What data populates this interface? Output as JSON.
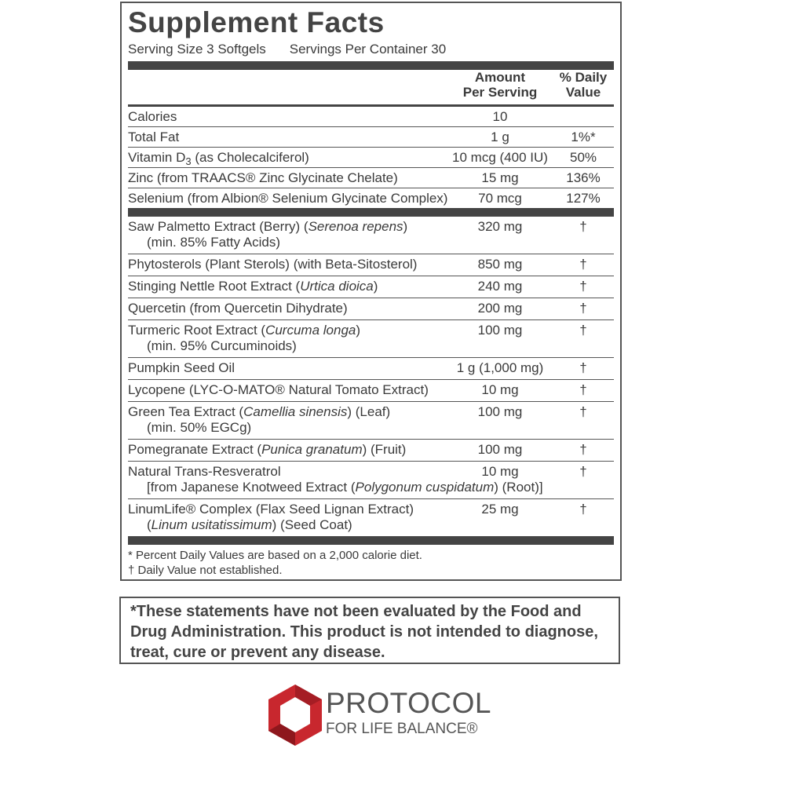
{
  "header": {
    "title": "Supplement Facts",
    "serving_size": "Serving Size 3 Softgels",
    "servings_per_container": "Servings Per Container 30"
  },
  "columns": {
    "amount": [
      "Amount",
      "Per Serving"
    ],
    "daily_value": [
      "% Daily",
      "Value"
    ]
  },
  "nutrients": [
    {
      "name": [
        "Calories"
      ],
      "amount": "10"
    },
    {
      "name": [
        "Total Fat"
      ],
      "amount": "1 g",
      "daily_value": "1%*"
    },
    {
      "name": [
        [
          "Vitamin D",
          {
            "sub": "3"
          },
          " (as Cholecalciferol)"
        ]
      ],
      "amount": "10 mcg (400 IU)",
      "daily_value": "50%"
    },
    {
      "name": [
        "Zinc (from TRAACS® Zinc Glycinate Chelate)"
      ],
      "amount": "15 mg",
      "daily_value": "136%"
    },
    {
      "name": [
        "Selenium (from Albion® Selenium Glycinate Complex)"
      ],
      "amount": "70 mcg",
      "daily_value": "127%"
    }
  ],
  "ingredients": [
    {
      "name": [
        [
          "Saw Palmetto Extract (Berry) (",
          {
            "italic": "Serenoa repens"
          },
          ")"
        ],
        "(min. 85% Fatty Acids)"
      ],
      "amount": "320 mg",
      "daily_value": "†"
    },
    {
      "name": [
        "Phytosterols (Plant Sterols) (with Beta-Sitosterol)"
      ],
      "amount": "850 mg",
      "daily_value": "†"
    },
    {
      "name": [
        [
          "Stinging Nettle Root Extract (",
          {
            "italic": "Urtica dioica"
          },
          ")"
        ]
      ],
      "amount": "240 mg",
      "daily_value": "†"
    },
    {
      "name": [
        "Quercetin (from Quercetin Dihydrate)"
      ],
      "amount": "200 mg",
      "daily_value": "†"
    },
    {
      "name": [
        [
          "Turmeric Root Extract (",
          {
            "italic": "Curcuma longa"
          },
          ")"
        ],
        "(min. 95% Curcuminoids)"
      ],
      "amount": "100 mg",
      "daily_value": "†"
    },
    {
      "name": [
        "Pumpkin Seed Oil"
      ],
      "amount": "1 g (1,000 mg)",
      "daily_value": "†"
    },
    {
      "name": [
        "Lycopene (LYC-O-MATO® Natural Tomato Extract)"
      ],
      "amount": "10 mg",
      "daily_value": "†"
    },
    {
      "name": [
        [
          "Green Tea Extract (",
          {
            "italic": "Camellia sinensis"
          },
          ") (Leaf)"
        ],
        "(min. 50% EGCg)"
      ],
      "amount": "100 mg",
      "daily_value": "†"
    },
    {
      "name": [
        [
          "Pomegranate Extract (",
          {
            "italic": "Punica granatum"
          },
          ") (Fruit)"
        ]
      ],
      "amount": "100 mg",
      "daily_value": "†"
    },
    {
      "name": [
        "Natural Trans-Resveratrol",
        [
          "[from Japanese Knotweed Extract (",
          {
            "italic": "Polygonum cuspidatum"
          },
          ") (Root)]"
        ]
      ],
      "amount": "10 mg",
      "daily_value": "†"
    },
    {
      "name": [
        "LinumLife® Complex (Flax Seed Lignan Extract)",
        [
          "(",
          {
            "italic": "Linum usitatissimum"
          },
          ") (Seed Coat)"
        ]
      ],
      "amount": "25 mg",
      "daily_value": "†"
    }
  ],
  "footnotes": [
    "* Percent Daily Values are based on a 2,000 calorie diet.",
    "† Daily Value not established."
  ],
  "disclaimer": "*These statements have not been evaluated by the Food and Drug Administration. This product is not intended to diagnose, treat, cure or prevent any disease.",
  "brand": {
    "name": "PROTOCOL",
    "tagline": "FOR LIFE BALANCE®"
  }
}
